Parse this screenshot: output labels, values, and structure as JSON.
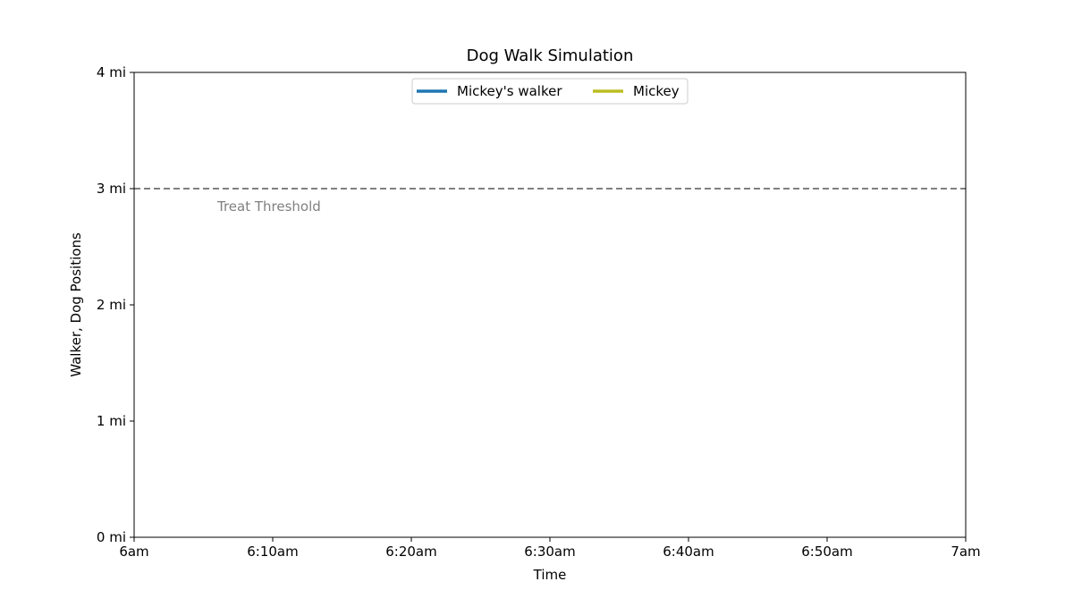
{
  "chart_data": {
    "type": "line",
    "title": "Dog Walk Simulation",
    "xlabel": "Time",
    "ylabel": "Walker, Dog Positions",
    "x_range": [
      "6am",
      "7am"
    ],
    "x_ticks": [
      "6am",
      "6:10am",
      "6:20am",
      "6:30am",
      "6:40am",
      "6:50am",
      "7am"
    ],
    "ylim": [
      0,
      4
    ],
    "y_ticks": [
      "0 mi",
      "1 mi",
      "2 mi",
      "3 mi",
      "4 mi"
    ],
    "grid": false,
    "legend_position": "upper center",
    "series": [
      {
        "name": "Mickey's walker",
        "color": "#1f77b4",
        "x": [],
        "y": []
      },
      {
        "name": "Mickey",
        "color": "#bcbd22",
        "x": [],
        "y": []
      }
    ],
    "reference_lines": [
      {
        "orientation": "horizontal",
        "y": 3,
        "label": "Treat Threshold",
        "color": "#808080",
        "style": "dashed"
      }
    ]
  }
}
